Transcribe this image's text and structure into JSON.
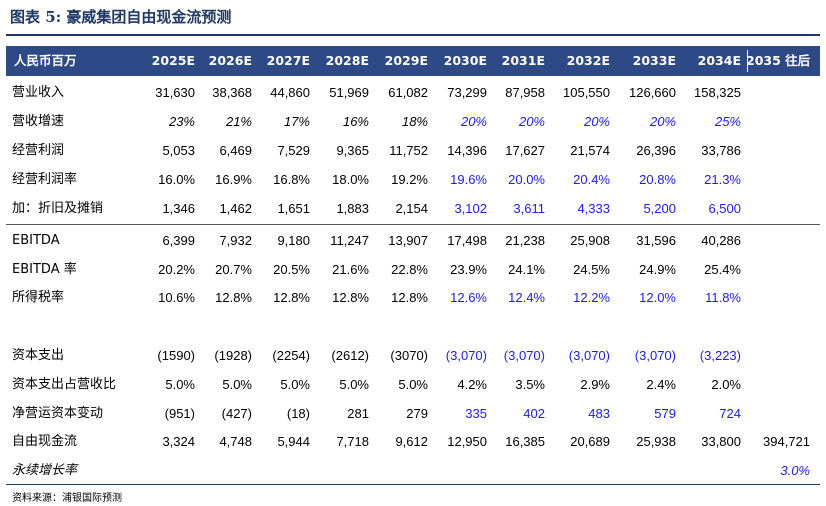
{
  "title": "图表 5:  豪威集团自由现金流预测",
  "header": [
    "人民币百万",
    "2025E",
    "2026E",
    "2027E",
    "2028E",
    "2029E",
    "2030E",
    "2031E",
    "2032E",
    "2033E",
    "2034E",
    "2035 往后"
  ],
  "rows": [
    {
      "label": "营业收入",
      "values": [
        "31,630",
        "38,368",
        "44,860",
        "51,969",
        "61,082",
        "73,299",
        "87,958",
        "105,550",
        "126,660",
        "158,325",
        ""
      ]
    },
    {
      "label": "营收增速",
      "values": [
        "23%",
        "21%",
        "17%",
        "16%",
        "18%",
        "20%",
        "20%",
        "20%",
        "20%",
        "25%",
        ""
      ]
    },
    {
      "label": "经营利润",
      "values": [
        "5,053",
        "6,469",
        "7,529",
        "9,365",
        "11,752",
        "14,396",
        "17,627",
        "21,574",
        "26,396",
        "33,786",
        ""
      ]
    },
    {
      "label": "经营利润率",
      "values": [
        "16.0%",
        "16.9%",
        "16.8%",
        "18.0%",
        "19.2%",
        "19.6%",
        "20.0%",
        "20.4%",
        "20.8%",
        "21.3%",
        ""
      ]
    },
    {
      "label": "加：折旧及摊销",
      "values": [
        "1,346",
        "1,462",
        "1,651",
        "1,883",
        "2,154",
        "3,102",
        "3,611",
        "4,333",
        "5,200",
        "6,500",
        ""
      ]
    },
    {
      "label": "EBITDA",
      "values": [
        "6,399",
        "7,932",
        "9,180",
        "11,247",
        "13,907",
        "17,498",
        "21,238",
        "25,908",
        "31,596",
        "40,286",
        ""
      ]
    },
    {
      "label": "EBITDA 率",
      "values": [
        "20.2%",
        "20.7%",
        "20.5%",
        "21.6%",
        "22.8%",
        "23.9%",
        "24.1%",
        "24.5%",
        "24.9%",
        "25.4%",
        ""
      ]
    },
    {
      "label": "所得税率",
      "values": [
        "10.6%",
        "12.8%",
        "12.8%",
        "12.8%",
        "12.8%",
        "12.6%",
        "12.4%",
        "12.2%",
        "12.0%",
        "11.8%",
        ""
      ]
    },
    {
      "label": "资本支出",
      "values": [
        "(1590)",
        "(1928)",
        "(2254)",
        "(2612)",
        "(3070)",
        "(3,070)",
        "(3,070)",
        "(3,070)",
        "(3,070)",
        "(3,223)",
        ""
      ]
    },
    {
      "label": "资本支出占营收比",
      "values": [
        "5.0%",
        "5.0%",
        "5.0%",
        "5.0%",
        "5.0%",
        "4.2%",
        "3.5%",
        "2.9%",
        "2.4%",
        "2.0%",
        ""
      ]
    },
    {
      "label": "净营运资本变动",
      "values": [
        "(951)",
        "(427)",
        "(18)",
        "281",
        "279",
        "335",
        "402",
        "483",
        "579",
        "724",
        ""
      ]
    },
    {
      "label": "自由现金流",
      "values": [
        "3,324",
        "4,748",
        "5,944",
        "7,718",
        "9,612",
        "12,950",
        "16,385",
        "20,689",
        "25,938",
        "33,800",
        "394,721"
      ]
    },
    {
      "label": "永续增长率",
      "values": [
        "",
        "",
        "",
        "",
        "",
        "",
        "",
        "",
        "",
        "",
        "3.0%"
      ]
    }
  ],
  "source": "资料来源：浦银国际预测",
  "colors": {
    "header_bg": "#2e4a86",
    "title": "#1f3864",
    "forecast_blue": "#1a1aff"
  }
}
